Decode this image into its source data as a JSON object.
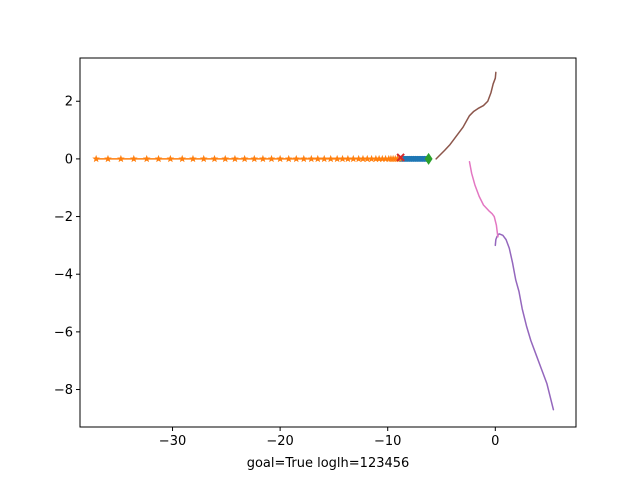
{
  "chart_data": {
    "type": "line",
    "title": "",
    "xlabel": "goal=True loglh=123456",
    "ylabel": "",
    "xlim": [
      -38.6,
      7.5
    ],
    "ylim": [
      -9.3,
      3.5
    ],
    "xticks": [
      -30,
      -20,
      -10,
      0
    ],
    "yticks": [
      -8,
      -6,
      -4,
      -2,
      0,
      2
    ],
    "xtick_labels": [
      "−30",
      "−20",
      "−10",
      "0"
    ],
    "ytick_labels": [
      "−8",
      "−6",
      "−4",
      "−2",
      "0",
      "2"
    ],
    "grid": false,
    "legend": "none",
    "series": [
      {
        "color": "#1f77b4",
        "marker": "dot",
        "x": [
          -8.8,
          -8.6,
          -8.4,
          -8.2,
          -8.0,
          -7.8,
          -7.6,
          -7.4,
          -7.2,
          -7.0,
          -6.8,
          -6.6,
          -6.4
        ],
        "y": [
          0,
          0,
          0,
          0,
          0,
          0,
          0,
          0,
          0,
          0,
          0,
          0,
          0
        ]
      },
      {
        "color": "#ff7f0e",
        "marker": "star",
        "x": [
          -37.1,
          -36.0,
          -34.8,
          -33.6,
          -32.4,
          -31.3,
          -30.2,
          -29.1,
          -28.1,
          -27.1,
          -26.1,
          -25.1,
          -24.2,
          -23.3,
          -22.4,
          -21.6,
          -20.8,
          -20.0,
          -19.2,
          -18.5,
          -17.8,
          -17.1,
          -16.5,
          -15.9,
          -15.3,
          -14.7,
          -14.2,
          -13.7,
          -13.2,
          -12.7,
          -12.3,
          -11.9,
          -11.5,
          -11.1,
          -10.8,
          -10.5,
          -10.2,
          -9.9,
          -9.7,
          -9.5,
          -9.3,
          -9.1,
          -8.9
        ],
        "y": [
          0,
          0,
          0,
          0,
          0,
          0,
          0,
          0,
          0,
          0,
          0,
          0,
          0,
          0,
          0,
          0,
          0,
          0,
          0,
          0,
          0,
          0,
          0,
          0,
          0,
          0,
          0,
          0,
          0,
          0,
          0,
          0,
          0,
          0,
          0,
          0,
          0,
          0,
          0,
          0,
          0,
          0,
          0
        ]
      },
      {
        "color": "#2ca02c",
        "marker": "diamond",
        "x": [
          -6.2
        ],
        "y": [
          0.0
        ]
      },
      {
        "color": "#d62728",
        "marker": "x",
        "x": [
          -8.8
        ],
        "y": [
          0.05
        ]
      },
      {
        "color": "#9467bd",
        "marker": "none",
        "x": [
          0.0,
          0.05,
          0.15,
          0.35,
          0.7,
          1.0,
          1.3,
          1.6,
          1.9,
          2.2,
          2.5,
          2.9,
          3.3,
          3.8,
          4.3,
          4.8,
          5.0,
          5.2,
          5.4
        ],
        "y": [
          -3.0,
          -2.8,
          -2.7,
          -2.6,
          -2.65,
          -2.8,
          -3.1,
          -3.6,
          -4.2,
          -4.6,
          -5.2,
          -5.8,
          -6.3,
          -6.8,
          -7.3,
          -7.8,
          -8.1,
          -8.4,
          -8.7
        ]
      },
      {
        "color": "#8c564b",
        "marker": "none",
        "x": [
          -5.5,
          -4.7,
          -4.2,
          -3.8,
          -3.4,
          -3.0,
          -2.7,
          -2.4,
          -2.0,
          -1.6,
          -1.1,
          -0.7,
          -0.4,
          -0.2,
          0.0,
          0.05
        ],
        "y": [
          0.0,
          0.3,
          0.5,
          0.7,
          0.9,
          1.1,
          1.3,
          1.5,
          1.65,
          1.75,
          1.85,
          2.0,
          2.3,
          2.6,
          2.8,
          3.0
        ]
      },
      {
        "color": "#e377c2",
        "marker": "none",
        "x": [
          -2.4,
          -2.2,
          -1.9,
          -1.5,
          -1.1,
          -0.6,
          -0.3,
          -0.1,
          0.1,
          0.2,
          0.25
        ],
        "y": [
          -0.1,
          -0.5,
          -0.9,
          -1.3,
          -1.6,
          -1.8,
          -1.9,
          -2.0,
          -2.3,
          -2.6,
          -2.7
        ]
      }
    ]
  }
}
